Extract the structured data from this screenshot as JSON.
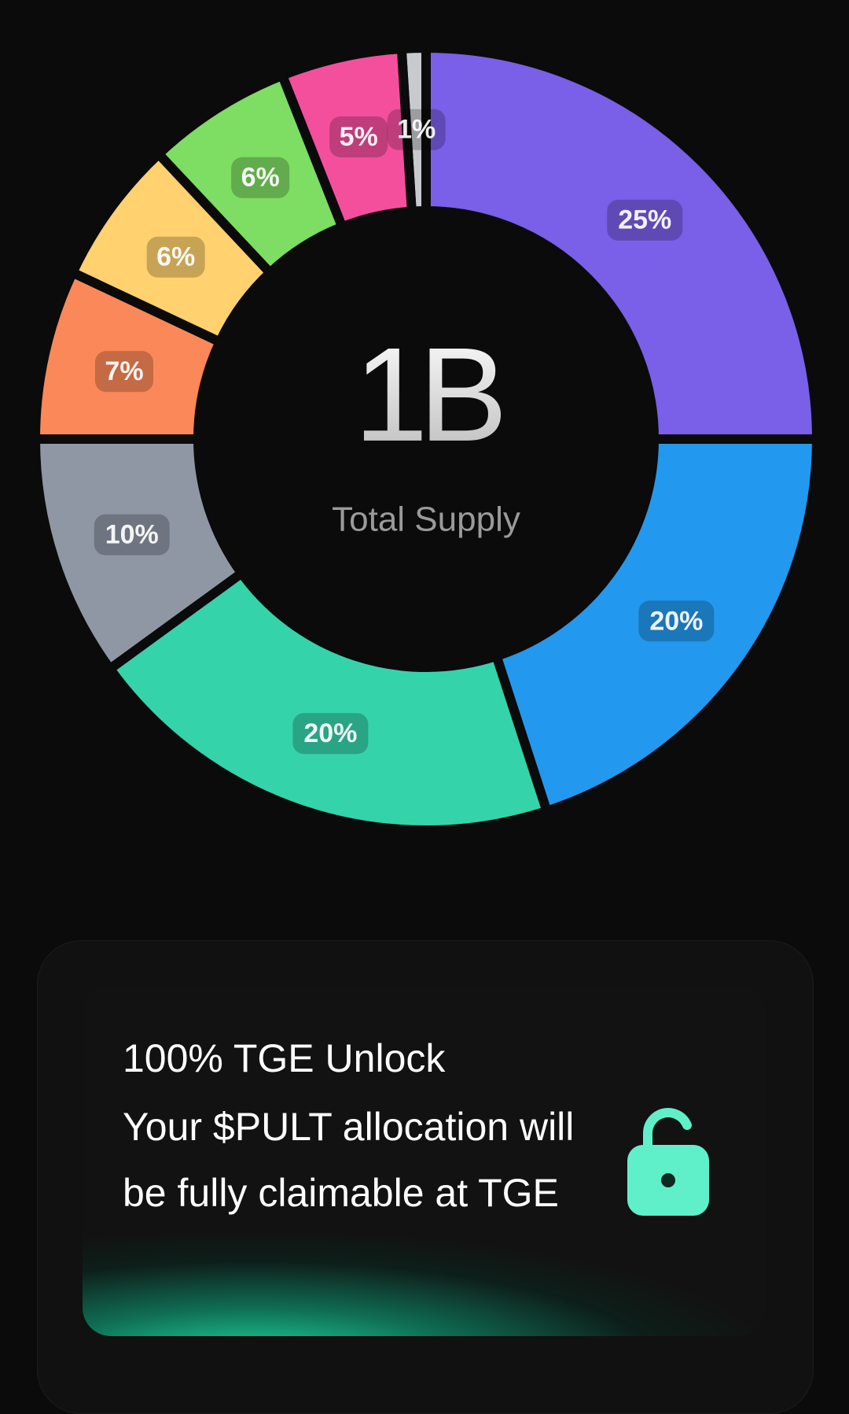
{
  "chart_data": {
    "type": "donut",
    "center_title": "1B",
    "center_subtitle": "Total Supply",
    "values": [
      25,
      20,
      20,
      10,
      7,
      6,
      6,
      5,
      1
    ],
    "value_labels": [
      "25%",
      "20%",
      "20%",
      "10%",
      "7%",
      "6%",
      "6%",
      "5%",
      "1%"
    ],
    "colors": [
      "#7a5fe8",
      "#2299ee",
      "#35d3aa",
      "#8f97a4",
      "#fb8858",
      "#ffd16f",
      "#7edd63",
      "#f44f9d",
      "#c8cace"
    ]
  },
  "card": {
    "title": "100% TGE Unlock",
    "text": "Your $PULT allocation will be fully claimable at TGE"
  }
}
